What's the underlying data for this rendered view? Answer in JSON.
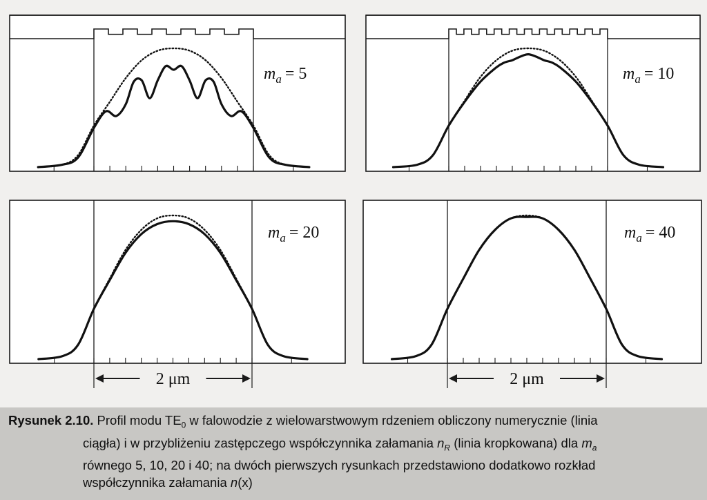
{
  "chart_data": [
    {
      "type": "line",
      "label": "m",
      "label_sub": "a",
      "label_value": "= 5",
      "ma": 5,
      "has_index_profile": true,
      "series": [
        {
          "style": "solid",
          "x": [
            -1.7,
            -1.4,
            -1.2,
            -1.0,
            -0.85,
            -0.72,
            -0.6,
            -0.5,
            -0.4,
            -0.3,
            -0.2,
            -0.1,
            0,
            0.1,
            0.2,
            0.3,
            0.4,
            0.5,
            0.6,
            0.72,
            0.85,
            1.0,
            1.2,
            1.4,
            1.7
          ],
          "y": [
            0.0,
            0.02,
            0.08,
            0.33,
            0.47,
            0.43,
            0.53,
            0.72,
            0.73,
            0.58,
            0.73,
            0.85,
            0.82,
            0.85,
            0.73,
            0.58,
            0.73,
            0.72,
            0.53,
            0.43,
            0.47,
            0.33,
            0.08,
            0.02,
            0.0
          ]
        },
        {
          "style": "dotted",
          "x": [
            -1.7,
            -1.4,
            -1.2,
            -1.0,
            -0.8,
            -0.6,
            -0.4,
            -0.2,
            0,
            0.2,
            0.4,
            0.6,
            0.8,
            1.0,
            1.2,
            1.4,
            1.7
          ],
          "y": [
            0.0,
            0.02,
            0.1,
            0.35,
            0.55,
            0.75,
            0.9,
            0.98,
            1.0,
            0.98,
            0.9,
            0.75,
            0.55,
            0.35,
            0.1,
            0.02,
            0.0
          ]
        }
      ]
    },
    {
      "type": "line",
      "label": "m",
      "label_sub": "a",
      "label_value": "= 10",
      "ma": 10,
      "has_index_profile": true,
      "series": [
        {
          "style": "solid",
          "x": [
            -1.7,
            -1.4,
            -1.2,
            -1.0,
            -0.8,
            -0.6,
            -0.4,
            -0.3,
            -0.2,
            -0.1,
            0,
            0.1,
            0.2,
            0.3,
            0.4,
            0.6,
            0.8,
            1.0,
            1.2,
            1.4,
            1.7
          ],
          "y": [
            0.0,
            0.02,
            0.1,
            0.35,
            0.55,
            0.72,
            0.84,
            0.88,
            0.9,
            0.93,
            0.95,
            0.93,
            0.9,
            0.88,
            0.84,
            0.72,
            0.55,
            0.35,
            0.1,
            0.02,
            0.0
          ]
        },
        {
          "style": "dotted",
          "x": [
            -1.7,
            -1.4,
            -1.2,
            -1.0,
            -0.8,
            -0.6,
            -0.4,
            -0.2,
            0,
            0.2,
            0.4,
            0.6,
            0.8,
            1.0,
            1.2,
            1.4,
            1.7
          ],
          "y": [
            0.0,
            0.02,
            0.1,
            0.35,
            0.56,
            0.76,
            0.9,
            0.98,
            1.0,
            0.98,
            0.9,
            0.76,
            0.56,
            0.35,
            0.1,
            0.02,
            0.0
          ]
        }
      ]
    },
    {
      "type": "line",
      "label": "m",
      "label_sub": "a",
      "label_value": "= 20",
      "ma": 20,
      "has_index_profile": false,
      "series": [
        {
          "style": "solid",
          "x": [
            -1.7,
            -1.4,
            -1.2,
            -1.0,
            -0.8,
            -0.6,
            -0.4,
            -0.2,
            0,
            0.2,
            0.4,
            0.6,
            0.8,
            1.0,
            1.2,
            1.4,
            1.7
          ],
          "y": [
            0.0,
            0.02,
            0.1,
            0.35,
            0.55,
            0.74,
            0.87,
            0.94,
            0.96,
            0.94,
            0.87,
            0.74,
            0.55,
            0.35,
            0.1,
            0.02,
            0.0
          ]
        },
        {
          "style": "dotted",
          "x": [
            -1.7,
            -1.4,
            -1.2,
            -1.0,
            -0.8,
            -0.6,
            -0.4,
            -0.2,
            0,
            0.2,
            0.4,
            0.6,
            0.8,
            1.0,
            1.2,
            1.4,
            1.7
          ],
          "y": [
            0.0,
            0.02,
            0.1,
            0.35,
            0.56,
            0.76,
            0.9,
            0.98,
            1.0,
            0.98,
            0.9,
            0.76,
            0.56,
            0.35,
            0.1,
            0.02,
            0.0
          ]
        }
      ]
    },
    {
      "type": "line",
      "label": "m",
      "label_sub": "a",
      "label_value": "= 40",
      "ma": 40,
      "has_index_profile": false,
      "series": [
        {
          "style": "solid",
          "x": [
            -1.7,
            -1.4,
            -1.2,
            -1.0,
            -0.8,
            -0.6,
            -0.4,
            -0.2,
            0,
            0.2,
            0.4,
            0.6,
            0.8,
            1.0,
            1.2,
            1.4,
            1.7
          ],
          "y": [
            0.0,
            0.02,
            0.1,
            0.35,
            0.56,
            0.76,
            0.9,
            0.98,
            0.99,
            0.98,
            0.9,
            0.76,
            0.56,
            0.35,
            0.1,
            0.02,
            0.0
          ]
        },
        {
          "style": "dotted",
          "x": [
            -1.7,
            -1.4,
            -1.2,
            -1.0,
            -0.8,
            -0.6,
            -0.4,
            -0.2,
            0,
            0.2,
            0.4,
            0.6,
            0.8,
            1.0,
            1.2,
            1.4,
            1.7
          ],
          "y": [
            0.0,
            0.02,
            0.1,
            0.35,
            0.56,
            0.76,
            0.9,
            0.98,
            1.0,
            0.98,
            0.9,
            0.76,
            0.56,
            0.35,
            0.1,
            0.02,
            0.0
          ]
        }
      ]
    }
  ],
  "scale_bar_label": "2 μm",
  "caption": {
    "lead": "Rysunek 2.10.",
    "line1": " Profil modu TE",
    "line1_sub": "0",
    "line1_rest": " w falowodzie z wielowarstwowym rdzeniem obliczony numerycznie (linia",
    "line2a": "ciągła) i w przybliżeniu zastępczego współczynnika załamania ",
    "line2_nR": "n",
    "line2_nR_sub": "R",
    "line2b": " (linia kropkowana) dla ",
    "line2_m": "m",
    "line2_m_sub": "a",
    "line3": "równego 5, 10, 20 i 40; na dwóch pierwszych rysunkach przedstawiono dodatkowo rozkład",
    "line4a": "współczynnika załamania ",
    "line4_n": "n",
    "line4b": "(x)"
  }
}
